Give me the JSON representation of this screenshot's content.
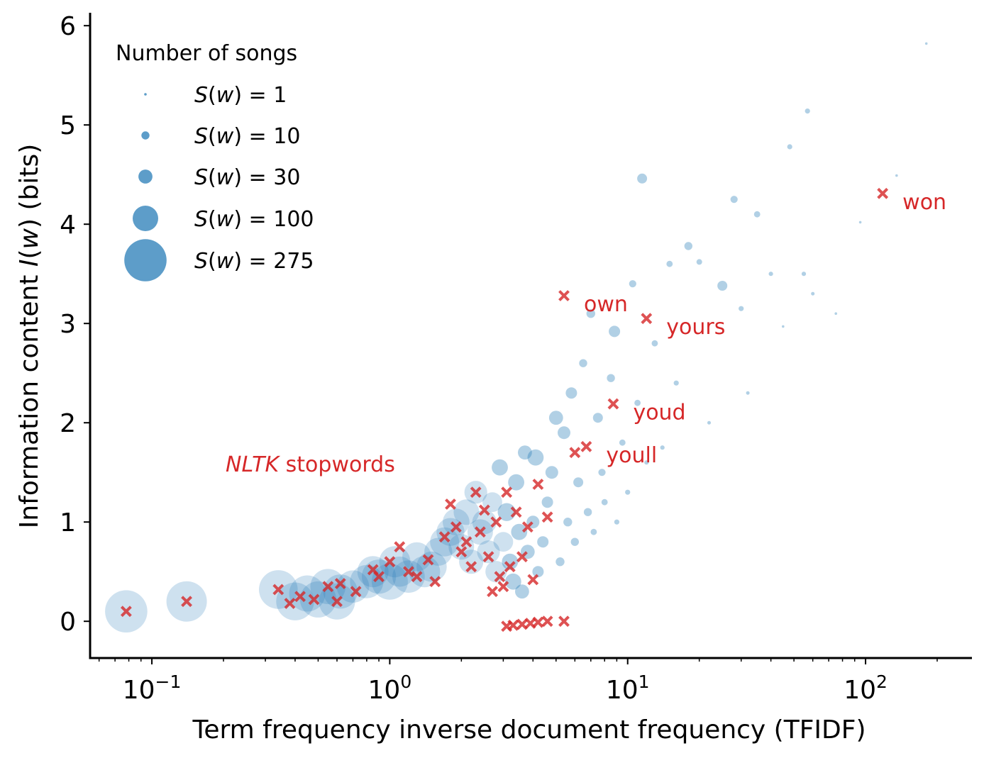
{
  "chart_data": {
    "type": "scatter",
    "xscale": "log",
    "xlabel": "Term frequency inverse document frequency (TFIDF)",
    "ylabel_parts": [
      "Information content ",
      "I",
      "(",
      "w",
      ") (bits)"
    ],
    "xlim": [
      0.055,
      280
    ],
    "ylim": [
      -0.37,
      6.13
    ],
    "xticks": [
      {
        "value": 0.1,
        "base": "10",
        "exp": "−1"
      },
      {
        "value": 1,
        "base": "10",
        "exp": "0"
      },
      {
        "value": 10,
        "base": "10",
        "exp": "1"
      },
      {
        "value": 100,
        "base": "10",
        "exp": "2"
      }
    ],
    "yticks": [
      0,
      1,
      2,
      3,
      4,
      5,
      6
    ],
    "grid": false,
    "legend": {
      "title": "Number of songs",
      "placement": "top-left",
      "entries": [
        {
          "s": 1,
          "label": "S(w) = 1"
        },
        {
          "s": 10,
          "label": "S(w) = 10"
        },
        {
          "s": 30,
          "label": "S(w) = 30"
        },
        {
          "s": 100,
          "label": "S(w) = 100"
        },
        {
          "s": 275,
          "label": "S(w) = 275"
        }
      ]
    },
    "series": [
      {
        "kind": "words",
        "color": "#1f77b4",
        "points": [
          [
            0.078,
            0.1,
            275
          ],
          [
            0.14,
            0.2,
            250
          ],
          [
            0.34,
            0.32,
            230
          ],
          [
            0.4,
            0.2,
            220
          ],
          [
            0.45,
            0.28,
            200
          ],
          [
            0.5,
            0.22,
            200
          ],
          [
            0.55,
            0.35,
            190
          ],
          [
            0.6,
            0.2,
            200
          ],
          [
            0.62,
            0.3,
            180
          ],
          [
            0.7,
            0.35,
            160
          ],
          [
            0.8,
            0.4,
            170
          ],
          [
            0.85,
            0.5,
            150
          ],
          [
            0.9,
            0.45,
            180
          ],
          [
            1.0,
            0.4,
            200
          ],
          [
            1.05,
            0.6,
            150
          ],
          [
            1.1,
            0.5,
            140
          ],
          [
            1.2,
            0.45,
            160
          ],
          [
            1.3,
            0.65,
            130
          ],
          [
            1.4,
            0.5,
            150
          ],
          [
            1.5,
            0.55,
            140
          ],
          [
            1.6,
            0.7,
            120
          ],
          [
            1.7,
            0.8,
            130
          ],
          [
            1.8,
            0.9,
            120
          ],
          [
            1.9,
            1.0,
            110
          ],
          [
            2.0,
            0.75,
            100
          ],
          [
            2.1,
            1.1,
            100
          ],
          [
            2.2,
            0.6,
            90
          ],
          [
            2.3,
            1.3,
            80
          ],
          [
            2.4,
            0.9,
            100
          ],
          [
            2.5,
            1.0,
            90
          ],
          [
            2.6,
            0.7,
            80
          ],
          [
            2.7,
            1.2,
            60
          ],
          [
            2.8,
            0.5,
            70
          ],
          [
            2.9,
            1.55,
            40
          ],
          [
            3.0,
            0.8,
            60
          ],
          [
            3.1,
            1.1,
            50
          ],
          [
            3.2,
            0.6,
            40
          ],
          [
            3.3,
            0.4,
            40
          ],
          [
            3.4,
            1.4,
            40
          ],
          [
            3.5,
            0.9,
            40
          ],
          [
            3.6,
            0.3,
            30
          ],
          [
            3.7,
            1.7,
            30
          ],
          [
            3.8,
            0.7,
            30
          ],
          [
            4.0,
            1.0,
            25
          ],
          [
            4.1,
            1.65,
            40
          ],
          [
            4.2,
            0.5,
            20
          ],
          [
            4.4,
            0.8,
            20
          ],
          [
            4.6,
            1.2,
            20
          ],
          [
            4.8,
            1.5,
            25
          ],
          [
            5.0,
            2.05,
            30
          ],
          [
            5.2,
            0.6,
            12
          ],
          [
            5.4,
            1.9,
            25
          ],
          [
            5.6,
            1.0,
            12
          ],
          [
            5.8,
            2.3,
            20
          ],
          [
            6.0,
            0.8,
            10
          ],
          [
            6.2,
            1.4,
            15
          ],
          [
            6.5,
            2.6,
            10
          ],
          [
            6.8,
            1.1,
            10
          ],
          [
            7.0,
            3.1,
            12
          ],
          [
            7.2,
            0.9,
            6
          ],
          [
            7.5,
            2.05,
            15
          ],
          [
            7.8,
            1.5,
            8
          ],
          [
            8.0,
            1.2,
            6
          ],
          [
            8.5,
            2.45,
            10
          ],
          [
            8.8,
            2.92,
            20
          ],
          [
            9.0,
            1.0,
            4
          ],
          [
            9.5,
            1.8,
            6
          ],
          [
            10.0,
            1.3,
            4
          ],
          [
            10.5,
            3.4,
            8
          ],
          [
            11.0,
            2.2,
            6
          ],
          [
            11.5,
            4.46,
            15
          ],
          [
            12.0,
            1.6,
            3
          ],
          [
            13.0,
            2.8,
            6
          ],
          [
            14.0,
            1.75,
            3
          ],
          [
            15.0,
            3.6,
            6
          ],
          [
            16.0,
            2.4,
            4
          ],
          [
            18.0,
            3.78,
            10
          ],
          [
            20.0,
            3.62,
            5
          ],
          [
            22.0,
            2.0,
            2
          ],
          [
            25.0,
            3.38,
            15
          ],
          [
            28.0,
            4.25,
            8
          ],
          [
            30.0,
            3.15,
            4
          ],
          [
            32.0,
            2.3,
            2
          ],
          [
            35.0,
            4.1,
            6
          ],
          [
            40.0,
            3.5,
            3
          ],
          [
            45.0,
            2.97,
            1
          ],
          [
            48.0,
            4.78,
            4
          ],
          [
            55.0,
            3.5,
            3
          ],
          [
            57.0,
            5.14,
            4
          ],
          [
            60.0,
            3.3,
            2
          ],
          [
            75.0,
            3.1,
            1
          ],
          [
            95.0,
            4.02,
            1
          ],
          [
            135.0,
            4.49,
            1
          ],
          [
            180.0,
            5.82,
            1
          ]
        ]
      },
      {
        "kind": "NLTK stopwords",
        "color": "#d62728",
        "points": [
          [
            0.078,
            0.1
          ],
          [
            0.14,
            0.2
          ],
          [
            0.34,
            0.32
          ],
          [
            0.38,
            0.18
          ],
          [
            0.42,
            0.25
          ],
          [
            0.48,
            0.22
          ],
          [
            0.55,
            0.35
          ],
          [
            0.6,
            0.2
          ],
          [
            0.62,
            0.38
          ],
          [
            0.72,
            0.3
          ],
          [
            0.85,
            0.52
          ],
          [
            0.9,
            0.45
          ],
          [
            1.0,
            0.6
          ],
          [
            1.1,
            0.75
          ],
          [
            1.2,
            0.5
          ],
          [
            1.3,
            0.45
          ],
          [
            1.45,
            0.62
          ],
          [
            1.55,
            0.4
          ],
          [
            1.7,
            0.85
          ],
          [
            1.8,
            1.18
          ],
          [
            1.9,
            0.95
          ],
          [
            2.0,
            0.7
          ],
          [
            2.1,
            0.8
          ],
          [
            2.2,
            0.55
          ],
          [
            2.3,
            1.3
          ],
          [
            2.4,
            0.9
          ],
          [
            2.5,
            1.12
          ],
          [
            2.6,
            0.65
          ],
          [
            2.7,
            0.3
          ],
          [
            2.8,
            1.0
          ],
          [
            2.9,
            0.45
          ],
          [
            3.0,
            0.35
          ],
          [
            3.1,
            1.3
          ],
          [
            3.2,
            0.55
          ],
          [
            3.4,
            1.1
          ],
          [
            3.6,
            0.65
          ],
          [
            3.8,
            0.95
          ],
          [
            4.0,
            0.42
          ],
          [
            4.2,
            1.38
          ],
          [
            4.6,
            1.05
          ],
          [
            5.4,
            3.28
          ],
          [
            6.0,
            1.7
          ],
          [
            6.7,
            1.76
          ],
          [
            8.7,
            2.19
          ],
          [
            12.0,
            3.05
          ],
          [
            118.0,
            4.31
          ],
          [
            3.1,
            -0.05
          ],
          [
            3.3,
            -0.04
          ],
          [
            3.6,
            -0.03
          ],
          [
            3.9,
            -0.02
          ],
          [
            4.2,
            -0.01
          ],
          [
            4.6,
            0.0
          ],
          [
            5.4,
            0.0
          ]
        ]
      }
    ],
    "annotations": [
      {
        "x": 118.0,
        "y": 4.31,
        "text": "won"
      },
      {
        "x": 5.4,
        "y": 3.28,
        "text": "own"
      },
      {
        "x": 12.0,
        "y": 3.05,
        "text": "yours"
      },
      {
        "x": 8.7,
        "y": 2.19,
        "text": "youd"
      },
      {
        "x": 6.7,
        "y": 1.76,
        "text": "youll"
      }
    ],
    "category_note_parts": [
      "NLTK",
      " stopwords"
    ]
  }
}
